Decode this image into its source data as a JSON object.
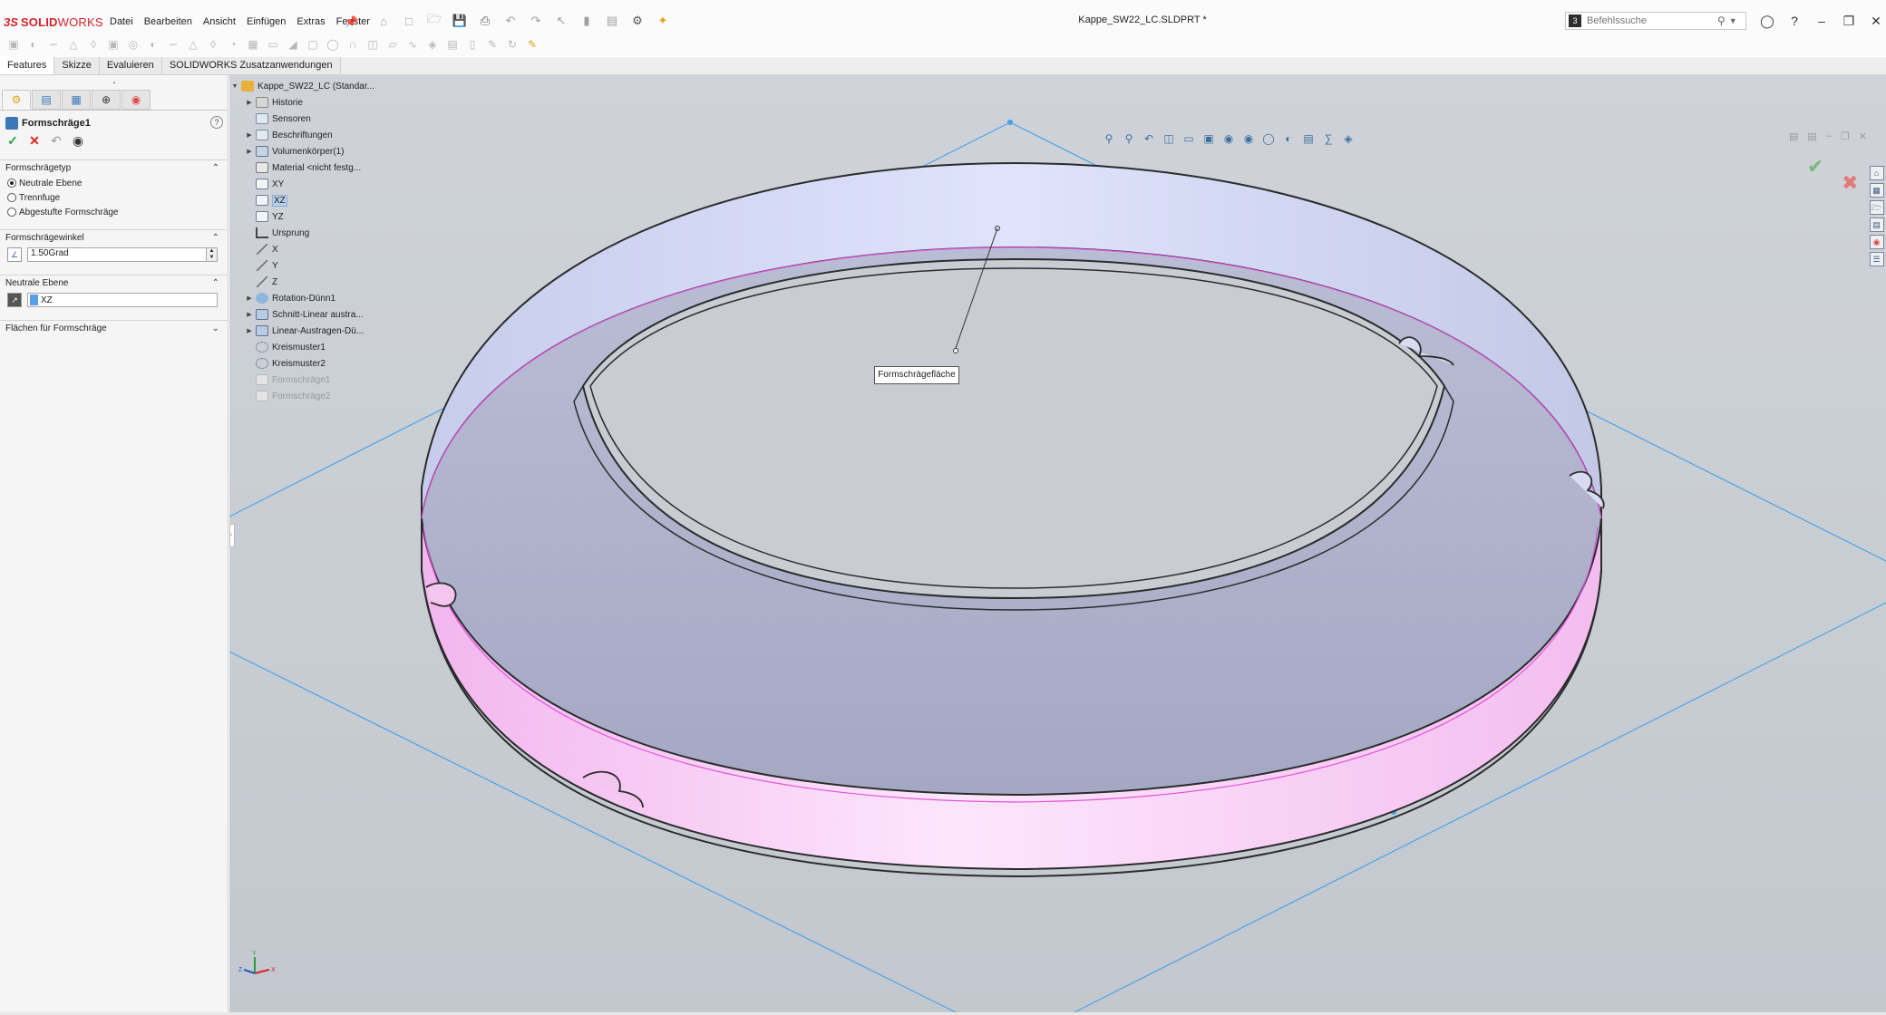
{
  "app": {
    "logo_mark": "3S",
    "logo_text_bold": "SOLID",
    "logo_text_light": "WORKS",
    "doc_title": "Kappe_SW22_LC.SLDPRT *"
  },
  "menu": [
    "Datei",
    "Bearbeiten",
    "Ansicht",
    "Einfügen",
    "Extras",
    "Fenster"
  ],
  "search": {
    "placeholder": "Befehlssuche"
  },
  "tabs": [
    "Features",
    "Skizze",
    "Evaluieren",
    "SOLIDWORKS Zusatzanwendungen"
  ],
  "property_manager": {
    "title": "Formschräge1",
    "groups": {
      "type": {
        "label": "Formschrägetyp",
        "options": [
          "Neutrale Ebene",
          "Trennfuge",
          "Abgestufte Formschräge"
        ],
        "selected": "Neutrale Ebene"
      },
      "angle": {
        "label": "Formschrägewinkel",
        "value": "1.50Grad"
      },
      "neutral_plane": {
        "label": "Neutrale Ebene",
        "value": "XZ"
      },
      "faces": {
        "label": "Flächen für Formschräge"
      }
    }
  },
  "feature_tree": [
    {
      "label": "Kappe_SW22_LC (Standar...",
      "expand": true
    },
    {
      "label": "Historie",
      "expand": true
    },
    {
      "label": "Sensoren",
      "expand": false
    },
    {
      "label": "Beschriftungen",
      "expand": true
    },
    {
      "label": "Volumenkörper(1)",
      "expand": true
    },
    {
      "label": "Material <nicht festg...",
      "expand": false
    },
    {
      "label": "XY",
      "expand": false
    },
    {
      "label": "XZ",
      "expand": false,
      "selected": true
    },
    {
      "label": "YZ",
      "expand": false
    },
    {
      "label": "Ursprung",
      "expand": false
    },
    {
      "label": "X",
      "expand": false
    },
    {
      "label": "Y",
      "expand": false
    },
    {
      "label": "Z",
      "expand": false
    },
    {
      "label": "Rotation-Dünn1",
      "expand": true
    },
    {
      "label": "Schnitt-Linear austra...",
      "expand": true
    },
    {
      "label": "Linear-Austragen-Dü...",
      "expand": true
    },
    {
      "label": "Kreismuster1",
      "expand": false
    },
    {
      "label": "Kreismuster2",
      "expand": false
    },
    {
      "label": "Formschräge1",
      "expand": false,
      "grey": true
    },
    {
      "label": "Formschräge2",
      "expand": false,
      "grey": true
    }
  ],
  "viewport": {
    "callout": "Formschrägefläche",
    "triad_labels": {
      "x": "X",
      "y": "Y",
      "z": "Z"
    }
  },
  "colors": {
    "accent": "#3b78b8",
    "draft_face": "#f6c8f2",
    "selection_plane": "#4aa3e6",
    "ok": "#2e9e3e",
    "cancel": "#d22222"
  }
}
